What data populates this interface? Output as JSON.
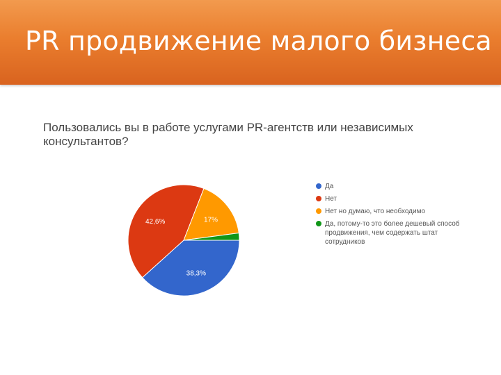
{
  "slide": {
    "title": "PR продвижение малого бизнеса"
  },
  "chart_data": {
    "type": "pie",
    "title": "Пользовались вы в работе услугами PR-агентств или независимых консультантов?",
    "slices": [
      {
        "label": "Да",
        "value": 38.3,
        "display": "38,3%",
        "color": "#3366cc"
      },
      {
        "label": "Нет",
        "value": 42.6,
        "display": "42,6%",
        "color": "#dc3912"
      },
      {
        "label": "Нет но думаю, что необходимо",
        "value": 17.0,
        "display": "17%",
        "color": "#ff9900"
      },
      {
        "label": "Да, потому-то это более дешевый способ продвижения, чем содержать штат сотрудников",
        "value": 2.1,
        "display": "",
        "color": "#109618"
      }
    ],
    "legend_position": "right"
  }
}
